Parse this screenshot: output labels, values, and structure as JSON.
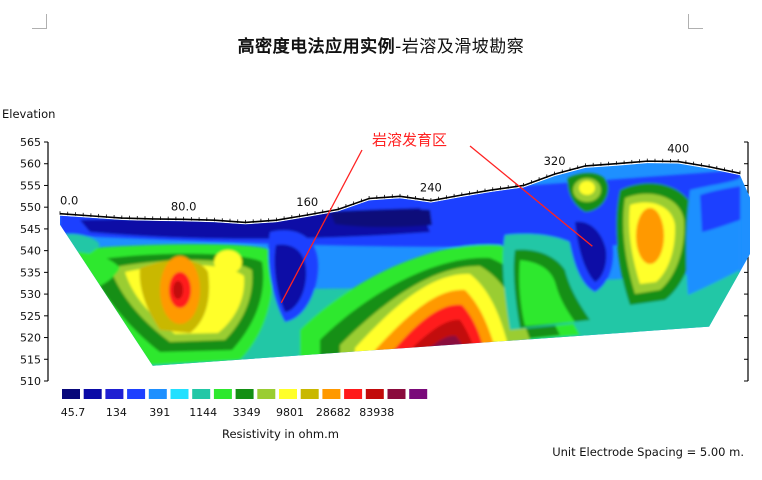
{
  "title": {
    "main": "高密度电法应用实例",
    "sub": "-岩溶及滑坡勘察"
  },
  "elevation_label": "Elevation",
  "annotation": "岩溶发育区",
  "legend_caption": "Resistivity in ohm.m",
  "spacing_note": "Unit Electrode Spacing = 5.00 m.",
  "chart_data": {
    "type": "heatmap",
    "ylabel": "Elevation",
    "ylim": [
      510,
      565
    ],
    "y_ticks": [
      565,
      560,
      555,
      550,
      545,
      540,
      535,
      530,
      525,
      520,
      515,
      510
    ],
    "xlim": [
      0,
      440
    ],
    "x_tick_labels": [
      {
        "x": 0,
        "label": "0.0"
      },
      {
        "x": 80,
        "label": "80.0"
      },
      {
        "x": 160,
        "label": "160"
      },
      {
        "x": 240,
        "label": "240"
      },
      {
        "x": 320,
        "label": "320"
      },
      {
        "x": 400,
        "label": "400"
      }
    ],
    "surface_profile": [
      [
        0,
        548.5
      ],
      [
        20,
        548
      ],
      [
        40,
        547.5
      ],
      [
        60,
        547.3
      ],
      [
        80,
        547.2
      ],
      [
        100,
        547
      ],
      [
        120,
        546.5
      ],
      [
        140,
        547
      ],
      [
        160,
        548.2
      ],
      [
        180,
        549.5
      ],
      [
        200,
        552
      ],
      [
        220,
        552.5
      ],
      [
        240,
        551.5
      ],
      [
        260,
        552.8
      ],
      [
        280,
        554
      ],
      [
        300,
        555
      ],
      [
        320,
        557.6
      ],
      [
        340,
        559.5
      ],
      [
        360,
        560
      ],
      [
        380,
        560.6
      ],
      [
        400,
        560.5
      ],
      [
        420,
        559.3
      ],
      [
        440,
        557.8
      ]
    ],
    "bottom_profile": [
      [
        60,
        513.5
      ],
      [
        420,
        522.5
      ]
    ],
    "colorbar": {
      "label": "Resistivity in ohm.m",
      "colors": [
        "#08087a",
        "#0a0aa6",
        "#1f1fd2",
        "#1e40ff",
        "#1e90ff",
        "#22e0ff",
        "#22c7a6",
        "#2ee82e",
        "#138f13",
        "#9acd32",
        "#ffff2a",
        "#c9b800",
        "#ff9900",
        "#ff1a1a",
        "#c20a0a",
        "#8a0a3c",
        "#7a0a7a"
      ],
      "tick_labels": [
        "45.7",
        "134",
        "391",
        "1144",
        "3349",
        "9801",
        "28682",
        "83938"
      ]
    },
    "annotation": {
      "text": "岩溶发育区",
      "targets": [
        {
          "x": 138,
          "elev": 528
        },
        {
          "x": 338,
          "elev": 541
        }
      ]
    },
    "anomalies": [
      {
        "type": "low",
        "x": 170,
        "elev": 537,
        "range": "45.7-391"
      },
      {
        "type": "low",
        "x": 338,
        "elev": 541,
        "range": "45.7-391"
      },
      {
        "type": "high",
        "x": 81,
        "elev": 531,
        "range": "9801-83938"
      },
      {
        "type": "high",
        "x": 254,
        "elev": 520,
        "range": "28682-83938"
      },
      {
        "type": "high",
        "x": 378,
        "elev": 545,
        "range": "9801-28682"
      }
    ]
  }
}
